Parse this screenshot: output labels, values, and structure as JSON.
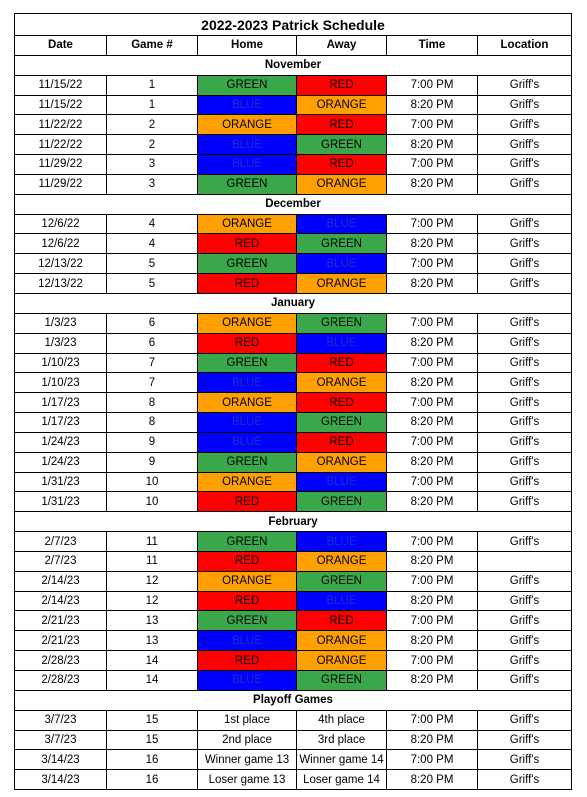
{
  "title": "2022-2023 Patrick Schedule",
  "headers": [
    "Date",
    "Game #",
    "Home",
    "Away",
    "Time",
    "Location"
  ],
  "team_colors": {
    "GREEN": "#3aa84a",
    "RED": "#ff0000",
    "BLUE": "#0000ff",
    "ORANGE": "#ffa000"
  },
  "sections": [
    {
      "name": "November",
      "rows": [
        {
          "date": "11/15/22",
          "game": "1",
          "home": "GREEN",
          "away": "RED",
          "time": "7:00 PM",
          "location": "Griff's"
        },
        {
          "date": "11/15/22",
          "game": "1",
          "home": "BLUE",
          "away": "ORANGE",
          "time": "8:20 PM",
          "location": "Griff's"
        },
        {
          "date": "11/22/22",
          "game": "2",
          "home": "ORANGE",
          "away": "RED",
          "time": "7:00 PM",
          "location": "Griff's"
        },
        {
          "date": "11/22/22",
          "game": "2",
          "home": "BLUE",
          "away": "GREEN",
          "time": "8:20 PM",
          "location": "Griff's"
        },
        {
          "date": "11/29/22",
          "game": "3",
          "home": "BLUE",
          "away": "RED",
          "time": "7:00 PM",
          "location": "Griff's"
        },
        {
          "date": "11/29/22",
          "game": "3",
          "home": "GREEN",
          "away": "ORANGE",
          "time": "8:20 PM",
          "location": "Griff's"
        }
      ]
    },
    {
      "name": "December",
      "rows": [
        {
          "date": "12/6/22",
          "game": "4",
          "home": "ORANGE",
          "away": "BLUE",
          "time": "7:00 PM",
          "location": "Griff's"
        },
        {
          "date": "12/6/22",
          "game": "4",
          "home": "RED",
          "away": "GREEN",
          "time": "8:20 PM",
          "location": "Griff's"
        },
        {
          "date": "12/13/22",
          "game": "5",
          "home": "GREEN",
          "away": "BLUE",
          "time": "7:00 PM",
          "location": "Griff's"
        },
        {
          "date": "12/13/22",
          "game": "5",
          "home": "RED",
          "away": "ORANGE",
          "time": "8:20 PM",
          "location": "Griff's"
        }
      ]
    },
    {
      "name": "January",
      "rows": [
        {
          "date": "1/3/23",
          "game": "6",
          "home": "ORANGE",
          "away": "GREEN",
          "time": "7:00 PM",
          "location": "Griff's"
        },
        {
          "date": "1/3/23",
          "game": "6",
          "home": "RED",
          "away": "BLUE",
          "time": "8:20 PM",
          "location": "Griff's"
        },
        {
          "date": "1/10/23",
          "game": "7",
          "home": "GREEN",
          "away": "RED",
          "time": "7:00 PM",
          "location": "Griff's"
        },
        {
          "date": "1/10/23",
          "game": "7",
          "home": "BLUE",
          "away": "ORANGE",
          "time": "8:20 PM",
          "location": "Griff's"
        },
        {
          "date": "1/17/23",
          "game": "8",
          "home": "ORANGE",
          "away": "RED",
          "time": "7:00 PM",
          "location": "Griff's"
        },
        {
          "date": "1/17/23",
          "game": "8",
          "home": "BLUE",
          "away": "GREEN",
          "time": "8:20 PM",
          "location": "Griff's"
        },
        {
          "date": "1/24/23",
          "game": "9",
          "home": "BLUE",
          "away": "RED",
          "time": "7:00 PM",
          "location": "Griff's"
        },
        {
          "date": "1/24/23",
          "game": "9",
          "home": "GREEN",
          "away": "ORANGE",
          "time": "8:20 PM",
          "location": "Griff's"
        },
        {
          "date": "1/31/23",
          "game": "10",
          "home": "ORANGE",
          "away": "BLUE",
          "time": "7:00 PM",
          "location": "Griff's"
        },
        {
          "date": "1/31/23",
          "game": "10",
          "home": "RED",
          "away": "GREEN",
          "time": "8:20 PM",
          "location": "Griff's"
        }
      ]
    },
    {
      "name": "February",
      "rows": [
        {
          "date": "2/7/23",
          "game": "11",
          "home": "GREEN",
          "away": "BLUE",
          "time": "7:00 PM",
          "location": "Griff's"
        },
        {
          "date": "2/7/23",
          "game": "11",
          "home": "RED",
          "away": "ORANGE",
          "time": "8:20 PM",
          "location": ""
        },
        {
          "date": "2/14/23",
          "game": "12",
          "home": "ORANGE",
          "away": "GREEN",
          "time": "7:00 PM",
          "location": "Griff's"
        },
        {
          "date": "2/14/23",
          "game": "12",
          "home": "RED",
          "away": "BLUE",
          "time": "8:20 PM",
          "location": "Griff's"
        },
        {
          "date": "2/21/23",
          "game": "13",
          "home": "GREEN",
          "away": "RED",
          "time": "7:00 PM",
          "location": "Griff's"
        },
        {
          "date": "2/21/23",
          "game": "13",
          "home": "BLUE",
          "away": "ORANGE",
          "time": "8:20 PM",
          "location": "Griff's"
        },
        {
          "date": "2/28/23",
          "game": "14",
          "home": "RED",
          "away": "ORANGE",
          "time": "7:00 PM",
          "location": "Griff's"
        },
        {
          "date": "2/28/23",
          "game": "14",
          "home": "BLUE",
          "away": "GREEN",
          "time": "8:20 PM",
          "location": "Griff's"
        }
      ]
    },
    {
      "name": "Playoff Games",
      "rows": [
        {
          "date": "3/7/23",
          "game": "15",
          "home": "1st place",
          "away": "4th place",
          "time": "7:00 PM",
          "location": "Griff's"
        },
        {
          "date": "3/7/23",
          "game": "15",
          "home": "2nd place",
          "away": "3rd place",
          "time": "8:20 PM",
          "location": "Griff's"
        },
        {
          "date": "3/14/23",
          "game": "16",
          "home": "Winner game 13",
          "away": "Winner game 14",
          "time": "7:00 PM",
          "location": "Griff's"
        },
        {
          "date": "3/14/23",
          "game": "16",
          "home": "Loser game 13",
          "away": "Loser game 14",
          "time": "8:20 PM",
          "location": "Griff's"
        }
      ]
    }
  ]
}
